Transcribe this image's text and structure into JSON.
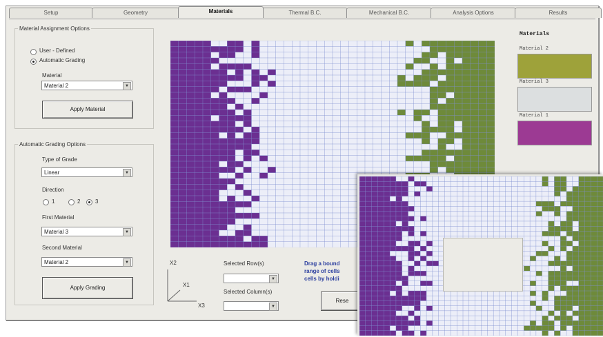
{
  "tabs": [
    "Setup",
    "Geometry",
    "Materials",
    "Thermal B.C.",
    "Mechanical B.C.",
    "Analysis Options",
    "Results"
  ],
  "active_tab": 2,
  "assignment": {
    "legend": "Material Assignment Options",
    "user_defined": "User - Defined",
    "automatic": "Automatic Grading",
    "material_label": "Material",
    "material_value": "Material 2",
    "apply_material": "Apply Material"
  },
  "grading": {
    "legend": "Automatic Grading Options",
    "type_label": "Type of Grade",
    "type_value": "Linear",
    "direction_label": "Direction",
    "dir_1": "1",
    "dir_2": "2",
    "dir_3": "3",
    "first_label": "First Material",
    "first_value": "Material 3",
    "second_label": "Second Material",
    "second_value": "Material 2",
    "apply_grading": "Apply Grading"
  },
  "axes": {
    "x2": "X2",
    "x1": "X1",
    "x3": "X3"
  },
  "selection": {
    "rows_label": "Selected Row(s)",
    "cols_label": "Selected Column(s)",
    "hint_1": "Drag a bound",
    "hint_2": "range of cells",
    "hint_3": "cells by holdi",
    "reset": "Rese"
  },
  "materials_panel": {
    "title": "Materials",
    "items": [
      {
        "name": "Material 2",
        "color": "#9ea23a"
      },
      {
        "name": "Material 3",
        "color": "#dcdfe0"
      },
      {
        "name": "Material 1",
        "color": "#9c3a93"
      }
    ]
  },
  "colors": {
    "purple": "#6b2f91",
    "green": "#6e8a3a",
    "cell": "#eceef8",
    "line": "#7f8fd0"
  }
}
